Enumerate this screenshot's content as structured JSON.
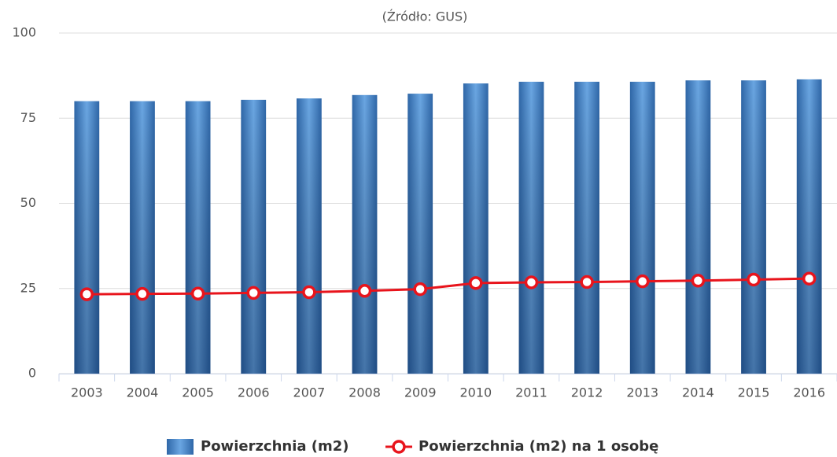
{
  "chart_data": {
    "type": "bar_line",
    "subtitle": "(Źródło: GUS)",
    "categories": [
      "2003",
      "2004",
      "2005",
      "2006",
      "2007",
      "2008",
      "2009",
      "2010",
      "2011",
      "2012",
      "2013",
      "2014",
      "2015",
      "2016"
    ],
    "series": [
      {
        "name": "Powierzchnia (m2)",
        "type": "bar",
        "color": "#4a86c6",
        "values": [
          80,
          80,
          80,
          80.4,
          80.8,
          81.8,
          82.2,
          85.2,
          85.7,
          85.7,
          85.7,
          86.1,
          86.1,
          86.4
        ]
      },
      {
        "name": "Powierzchnia (m2) na 1 osobę",
        "type": "line",
        "color": "#e8141c",
        "values": [
          23.3,
          23.4,
          23.5,
          23.7,
          23.9,
          24.3,
          24.8,
          26.6,
          26.8,
          26.9,
          27.1,
          27.3,
          27.6,
          27.9
        ]
      }
    ],
    "ylim": [
      0,
      100
    ],
    "yticks": [
      0,
      25,
      50,
      75,
      100
    ],
    "grid": true
  }
}
